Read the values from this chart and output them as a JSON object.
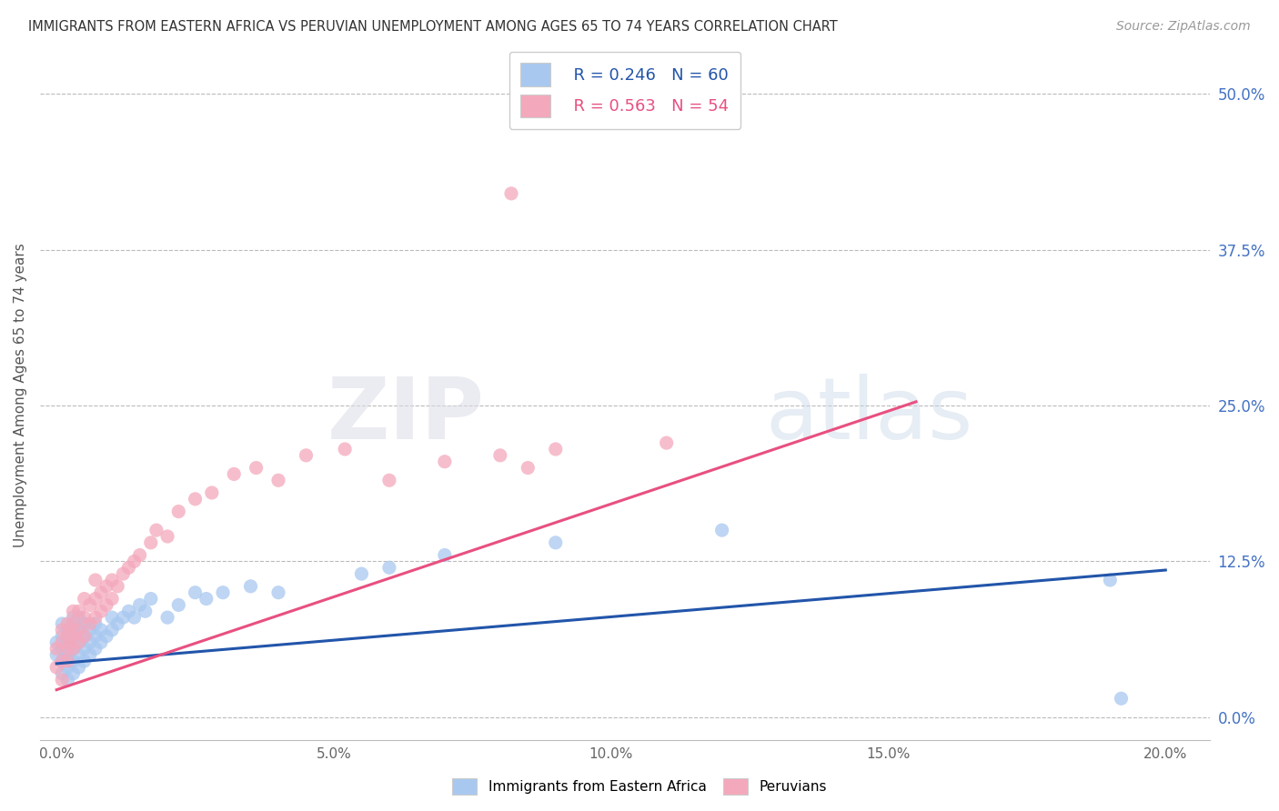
{
  "title": "IMMIGRANTS FROM EASTERN AFRICA VS PERUVIAN UNEMPLOYMENT AMONG AGES 65 TO 74 YEARS CORRELATION CHART",
  "source": "Source: ZipAtlas.com",
  "ylabel": "Unemployment Among Ages 65 to 74 years",
  "x_ticks": [
    0.0,
    0.05,
    0.1,
    0.15,
    0.2
  ],
  "x_tick_labels": [
    "0.0%",
    "5.0%",
    "10.0%",
    "15.0%",
    "20.0%"
  ],
  "y_ticks": [
    0.0,
    0.125,
    0.25,
    0.375,
    0.5
  ],
  "y_tick_labels": [
    "0.0%",
    "12.5%",
    "25.0%",
    "37.5%",
    "50.0%"
  ],
  "xlim": [
    -0.003,
    0.208
  ],
  "ylim": [
    -0.018,
    0.535
  ],
  "blue_R": 0.246,
  "blue_N": 60,
  "pink_R": 0.563,
  "pink_N": 54,
  "blue_color": "#A8C8F0",
  "pink_color": "#F4A8BC",
  "blue_line_color": "#2255AA",
  "pink_line_color": "#E85080",
  "legend_label_blue": "Immigrants from Eastern Africa",
  "legend_label_pink": "Peruvians",
  "blue_line_x0": 0.0,
  "blue_line_y0": 0.043,
  "blue_line_x1": 0.2,
  "blue_line_y1": 0.118,
  "pink_line_x0": 0.0,
  "pink_line_y0": 0.022,
  "pink_line_x1": 0.155,
  "pink_line_y1": 0.253,
  "blue_scatter_x": [
    0.0,
    0.0,
    0.001,
    0.001,
    0.001,
    0.001,
    0.001,
    0.002,
    0.002,
    0.002,
    0.002,
    0.002,
    0.002,
    0.003,
    0.003,
    0.003,
    0.003,
    0.003,
    0.003,
    0.004,
    0.004,
    0.004,
    0.004,
    0.004,
    0.005,
    0.005,
    0.005,
    0.005,
    0.006,
    0.006,
    0.006,
    0.007,
    0.007,
    0.007,
    0.008,
    0.008,
    0.009,
    0.01,
    0.01,
    0.011,
    0.012,
    0.013,
    0.014,
    0.015,
    0.016,
    0.017,
    0.02,
    0.022,
    0.025,
    0.027,
    0.03,
    0.035,
    0.04,
    0.055,
    0.06,
    0.07,
    0.09,
    0.12,
    0.19,
    0.192
  ],
  "blue_scatter_y": [
    0.05,
    0.06,
    0.035,
    0.045,
    0.055,
    0.065,
    0.075,
    0.03,
    0.04,
    0.05,
    0.06,
    0.07,
    0.045,
    0.035,
    0.045,
    0.055,
    0.06,
    0.07,
    0.08,
    0.04,
    0.05,
    0.06,
    0.07,
    0.08,
    0.045,
    0.055,
    0.065,
    0.075,
    0.05,
    0.06,
    0.07,
    0.055,
    0.065,
    0.075,
    0.06,
    0.07,
    0.065,
    0.07,
    0.08,
    0.075,
    0.08,
    0.085,
    0.08,
    0.09,
    0.085,
    0.095,
    0.08,
    0.09,
    0.1,
    0.095,
    0.1,
    0.105,
    0.1,
    0.115,
    0.12,
    0.13,
    0.14,
    0.15,
    0.11,
    0.015
  ],
  "pink_scatter_x": [
    0.0,
    0.0,
    0.001,
    0.001,
    0.001,
    0.001,
    0.002,
    0.002,
    0.002,
    0.002,
    0.003,
    0.003,
    0.003,
    0.003,
    0.004,
    0.004,
    0.004,
    0.005,
    0.005,
    0.005,
    0.006,
    0.006,
    0.007,
    0.007,
    0.007,
    0.008,
    0.008,
    0.009,
    0.009,
    0.01,
    0.01,
    0.011,
    0.012,
    0.013,
    0.014,
    0.015,
    0.017,
    0.018,
    0.02,
    0.022,
    0.025,
    0.028,
    0.032,
    0.036,
    0.04,
    0.045,
    0.052,
    0.06,
    0.07,
    0.08,
    0.085,
    0.09,
    0.082,
    0.11
  ],
  "pink_scatter_y": [
    0.04,
    0.055,
    0.03,
    0.045,
    0.06,
    0.07,
    0.045,
    0.055,
    0.065,
    0.075,
    0.055,
    0.065,
    0.075,
    0.085,
    0.06,
    0.07,
    0.085,
    0.065,
    0.08,
    0.095,
    0.075,
    0.09,
    0.08,
    0.095,
    0.11,
    0.085,
    0.1,
    0.09,
    0.105,
    0.095,
    0.11,
    0.105,
    0.115,
    0.12,
    0.125,
    0.13,
    0.14,
    0.15,
    0.145,
    0.165,
    0.175,
    0.18,
    0.195,
    0.2,
    0.19,
    0.21,
    0.215,
    0.19,
    0.205,
    0.21,
    0.2,
    0.215,
    0.42,
    0.22
  ]
}
